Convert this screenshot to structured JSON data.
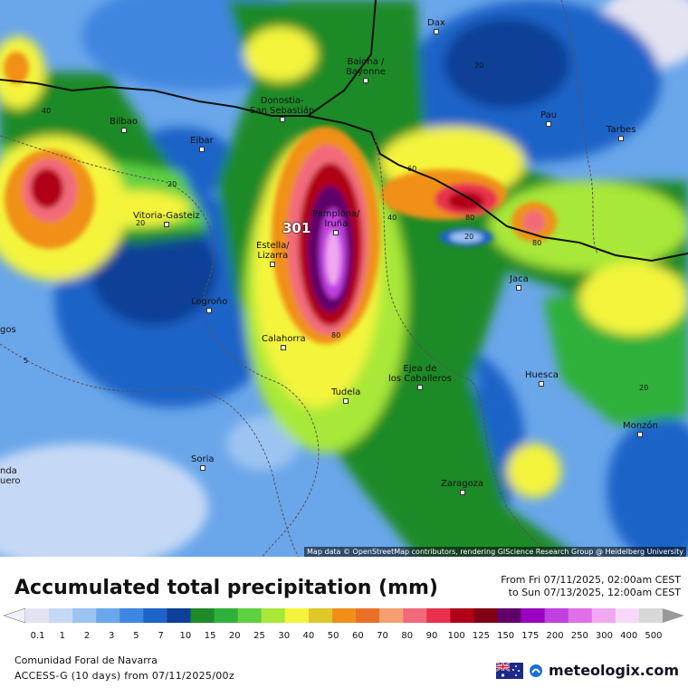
{
  "map": {
    "cities": [
      {
        "name": "Dax"
      },
      {
        "name": "Baiona /\nBayonne"
      },
      {
        "name": "Bilbao"
      },
      {
        "name": "Donostia-\nSan Sebastián"
      },
      {
        "name": "Pau"
      },
      {
        "name": "Tarbes"
      },
      {
        "name": "Eibar"
      },
      {
        "name": "Vitoria-Gasteiz"
      },
      {
        "name": "Pamplona/\nIruña"
      },
      {
        "name": "Estella/\nLizarra"
      },
      {
        "name": "Jaca"
      },
      {
        "name": "Logroño"
      },
      {
        "name": "Calahorra"
      },
      {
        "name": "Ejea de\nlos Caballeros"
      },
      {
        "name": "Huesca"
      },
      {
        "name": "Tudela"
      },
      {
        "name": "Monzón"
      },
      {
        "name": "Soria"
      },
      {
        "name": "Zaragoza"
      },
      {
        "name": "gos"
      },
      {
        "name": "nda\nuero"
      }
    ],
    "contour_labels": [
      "40",
      "20",
      "20",
      "60",
      "40",
      "80",
      "80",
      "80",
      "20",
      "5",
      "20",
      "20"
    ],
    "max_value": "301",
    "attribution": "Map data © OpenStreetMap contributors, rendering GIScience Research Group @ Heidelberg University"
  },
  "title": "Accumulated total precipitation (mm)",
  "period": {
    "from": "From Fri 07/11/2025, 02:00am CEST",
    "to": "to Sun 07/13/2025, 12:00am CEST"
  },
  "legend": {
    "ticks": [
      "0.1",
      "1",
      "2",
      "3",
      "5",
      "7",
      "10",
      "15",
      "20",
      "25",
      "30",
      "40",
      "50",
      "60",
      "70",
      "80",
      "90",
      "100",
      "125",
      "150",
      "175",
      "200",
      "250",
      "300",
      "400",
      "500"
    ],
    "colors": [
      "#e3e3f2",
      "#c5d9f6",
      "#9cc4f2",
      "#6aa6ea",
      "#3f86e0",
      "#1e63c8",
      "#0f3f96",
      "#1f8a28",
      "#2fb03a",
      "#5fd040",
      "#a8e838",
      "#f4f43c",
      "#e0c82a",
      "#f09018",
      "#e87028",
      "#f4a070",
      "#f26a7a",
      "#e8304c",
      "#b00018",
      "#800014",
      "#60006a",
      "#9a00c0",
      "#c040e0",
      "#e070e8",
      "#f0a8f0",
      "#f8d8f8",
      "#d8d8d8"
    ],
    "under_color": "#f0f0f8",
    "over_color": "#999999"
  },
  "footer": {
    "region": "Comunidad Foral de Navarra",
    "model": "ACCESS-G (10 days) from 07/11/2025/00z",
    "brand": "meteologix.com",
    "flag_icon": "australia-flag-icon",
    "logo_icon": "meteologix-logo-icon"
  }
}
